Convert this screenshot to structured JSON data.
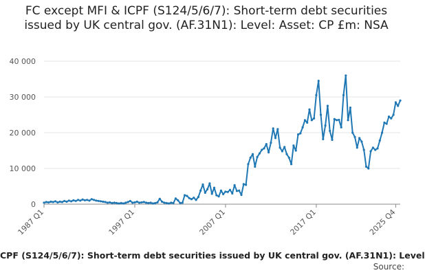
{
  "title": "FC except MFI & ICPF (S124/5/6/7): Short-term debt securities issued by UK central gov. (AF.31N1): Level: Asset: CP £m: NSA",
  "footer": {
    "series_caption": "CPF (S124/5/6/7): Short-term debt securities issued by UK central gov. (AF.31N1): Level",
    "source_label": "Source:"
  },
  "colors": {
    "line": "#1f77b4",
    "grid": "#e6e6e6",
    "axis": "#888888",
    "text": "#555555"
  },
  "chart_data": {
    "type": "line",
    "x_start_year": 1987,
    "x_start_quarter": 1,
    "frequency": "quarterly",
    "ylim": [
      0,
      40000
    ],
    "yticks": [
      0,
      10000,
      20000,
      30000,
      40000
    ],
    "ytick_labels": [
      "0",
      "10 000",
      "20 000",
      "30 000",
      "40 000"
    ],
    "xtick_labels": [
      "1987 Q1",
      "1997 Q1",
      "2007 Q1",
      "2017 Q1",
      "2025 Q4"
    ],
    "xtick_index": [
      0,
      40,
      80,
      120,
      155
    ],
    "grid": true,
    "legend": "none",
    "series": [
      {
        "values": [
          400,
          600,
          500,
          700,
          600,
          800,
          500,
          700,
          600,
          900,
          700,
          1000,
          800,
          1100,
          900,
          1200,
          1000,
          1300,
          1100,
          1200,
          1000,
          1400,
          1200,
          1000,
          900,
          800,
          700,
          600,
          400,
          500,
          300,
          400,
          300,
          200,
          300,
          200,
          400,
          600,
          900,
          400,
          500,
          700,
          400,
          500,
          600,
          400,
          300,
          400,
          200,
          300,
          500,
          1500,
          700,
          400,
          300,
          200,
          400,
          300,
          1600,
          1100,
          300,
          400,
          2500,
          2300,
          1700,
          1400,
          1800,
          1200,
          2000,
          3800,
          5500,
          3200,
          4200,
          5800,
          2900,
          4600,
          2500,
          2200,
          3800,
          2800,
          3500,
          3400,
          4000,
          3000,
          5300,
          3700,
          3800,
          2600,
          5600,
          5400,
          11200,
          13000,
          14000,
          10500,
          13200,
          14200,
          15200,
          15600,
          16800,
          14500,
          17200,
          21200,
          18500,
          21000,
          15800,
          14800,
          16000,
          14000,
          13000,
          11200,
          16400,
          15000,
          19500,
          19800,
          21500,
          23500,
          22800,
          26500,
          23500,
          24000,
          30500,
          34500,
          25000,
          18200,
          22000,
          27500,
          20500,
          18000,
          23800,
          23500,
          23600,
          21500,
          30500,
          36000,
          23500,
          27000,
          20000,
          18800,
          15800,
          18500,
          17500,
          15200,
          10500,
          10000,
          14800,
          15800,
          15200,
          15600,
          17800,
          20000,
          22800,
          22500,
          24500,
          24000,
          25000,
          28500,
          27500,
          29000
        ]
      }
    ]
  }
}
